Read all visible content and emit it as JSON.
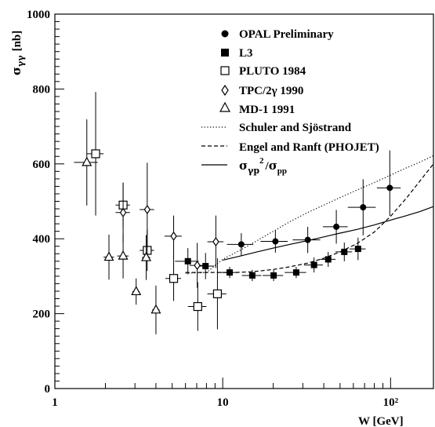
{
  "chart_data": {
    "type": "scatter",
    "title": "",
    "xlabel": "W [GeV]",
    "ylabel": "σγγ [nb]",
    "xscale": "log",
    "xlim": [
      1,
      180
    ],
    "ylim": [
      0,
      1000
    ],
    "grid": false,
    "legend_position": "top-right",
    "x_ticks": [
      {
        "value": 1,
        "label": "1"
      },
      {
        "value": 10,
        "label": "10"
      },
      {
        "value": 100,
        "label": "10²"
      }
    ],
    "y_ticks": [
      {
        "value": 0,
        "label": "0"
      },
      {
        "value": 200,
        "label": "200"
      },
      {
        "value": 400,
        "label": "400"
      },
      {
        "value": 600,
        "label": "600"
      },
      {
        "value": 800,
        "label": "800"
      },
      {
        "value": 1000,
        "label": "1000"
      }
    ],
    "series": [
      {
        "name": "OPAL Preliminary",
        "marker": "filled-circle",
        "points": [
          {
            "x": 12.9,
            "y": 385,
            "xerr": [
              2.3,
              2.3
            ],
            "yerr": [
              30,
              30
            ]
          },
          {
            "x": 20.6,
            "y": 393,
            "xerr": [
              3.8,
              3.8
            ],
            "yerr": [
              30,
              30
            ]
          },
          {
            "x": 32.1,
            "y": 397,
            "xerr": [
              6.0,
              6.0
            ],
            "yerr": [
              35,
              35
            ]
          },
          {
            "x": 47.5,
            "y": 432,
            "xerr": [
              8.0,
              8.0
            ],
            "yerr": [
              45,
              45
            ]
          },
          {
            "x": 68.6,
            "y": 484,
            "xerr": [
              13.0,
              13.0
            ],
            "yerr": [
              75,
              75
            ]
          },
          {
            "x": 98.9,
            "y": 536,
            "xerr": [
              16.0,
              16.0
            ],
            "yerr": [
              75,
              100
            ]
          }
        ]
      },
      {
        "name": "L3",
        "marker": "filled-square",
        "points": [
          {
            "x": 6.2,
            "y": 340,
            "xerr": [
              1.0,
              1.0
            ],
            "yerr": [
              35,
              35
            ]
          },
          {
            "x": 7.9,
            "y": 327,
            "xerr": [
              1.0,
              1.0
            ],
            "yerr": [
              35,
              35
            ]
          },
          {
            "x": 11.0,
            "y": 310,
            "xerr": [
              1.3,
              1.3
            ],
            "yerr": [
              15,
              15
            ]
          },
          {
            "x": 15.0,
            "y": 302,
            "xerr": [
              2.0,
              2.0
            ],
            "yerr": [
              15,
              15
            ]
          },
          {
            "x": 20.1,
            "y": 302,
            "xerr": [
              2.8,
              2.8
            ],
            "yerr": [
              15,
              15
            ]
          },
          {
            "x": 27.4,
            "y": 310,
            "xerr": [
              4.0,
              4.0
            ],
            "yerr": [
              15,
              15
            ]
          },
          {
            "x": 35.0,
            "y": 330,
            "xerr": [
              4.5,
              4.5
            ],
            "yerr": [
              20,
              20
            ]
          },
          {
            "x": 42.5,
            "y": 345,
            "xerr": [
              4.5,
              4.5
            ],
            "yerr": [
              20,
              20
            ]
          },
          {
            "x": 53.0,
            "y": 365,
            "xerr": [
              6.0,
              6.0
            ],
            "yerr": [
              25,
              25
            ]
          },
          {
            "x": 64.0,
            "y": 373,
            "xerr": [
              7.0,
              7.0
            ],
            "yerr": [
              30,
              30
            ]
          }
        ]
      },
      {
        "name": "PLUTO 1984",
        "marker": "open-square",
        "points": [
          {
            "x": 1.75,
            "y": 627,
            "xerr": [
              0.2,
              0.2
            ],
            "yerr": [
              165,
              165
            ]
          },
          {
            "x": 2.55,
            "y": 490,
            "xerr": [
              0.25,
              0.25
            ],
            "yerr": [
              60,
              60
            ]
          },
          {
            "x": 3.55,
            "y": 369,
            "xerr": [
              0.35,
              0.35
            ],
            "yerr": [
              55,
              55
            ]
          },
          {
            "x": 5.1,
            "y": 294,
            "xerr": [
              0.55,
              0.55
            ],
            "yerr": [
              60,
              60
            ]
          },
          {
            "x": 7.1,
            "y": 219,
            "xerr": [
              0.9,
              0.9
            ],
            "yerr": [
              65,
              65
            ]
          },
          {
            "x": 9.3,
            "y": 253,
            "xerr": [
              1.2,
              1.2
            ],
            "yerr": [
              95,
              95
            ]
          }
        ]
      },
      {
        "name": "TPC/2γ 1990",
        "marker": "open-diamond",
        "points": [
          {
            "x": 2.55,
            "y": 470,
            "xerr": [
              0.25,
              0.25
            ],
            "yerr": [
              80,
              80
            ]
          },
          {
            "x": 3.55,
            "y": 478,
            "xerr": [
              0.35,
              0.35
            ],
            "yerr": [
              125,
              125
            ]
          },
          {
            "x": 5.1,
            "y": 407,
            "xerr": [
              0.6,
              0.6
            ],
            "yerr": [
              55,
              55
            ]
          },
          {
            "x": 7.05,
            "y": 329,
            "xerr": [
              0.7,
              0.7
            ],
            "yerr": [
              60,
              60
            ]
          },
          {
            "x": 9.1,
            "y": 392,
            "xerr": [
              1.0,
              1.0
            ],
            "yerr": [
              70,
              70
            ]
          }
        ]
      },
      {
        "name": "MD-1 1991",
        "marker": "open-triangle",
        "points": [
          {
            "x": 1.55,
            "y": 604,
            "xerr": [
              0.25,
              0.25
            ],
            "yerr": [
              115,
              115
            ]
          },
          {
            "x": 2.1,
            "y": 351,
            "xerr": [
              0.15,
              0.15
            ],
            "yerr": [
              60,
              60
            ]
          },
          {
            "x": 2.55,
            "y": 354,
            "xerr": [
              0.2,
              0.2
            ],
            "yerr": [
              60,
              60
            ]
          },
          {
            "x": 3.05,
            "y": 259,
            "xerr": [
              0.15,
              0.15
            ],
            "yerr": [
              35,
              35
            ]
          },
          {
            "x": 3.5,
            "y": 350,
            "xerr": [
              0.2,
              0.2
            ],
            "yerr": [
              60,
              60
            ]
          },
          {
            "x": 4.0,
            "y": 210,
            "xerr": [
              0.2,
              0.2
            ],
            "yerr": [
              65,
              65
            ]
          }
        ]
      }
    ],
    "curves": [
      {
        "name": "Schuler and Sjöstrand",
        "style": "dotted",
        "x": [
          6,
          8,
          10,
          13,
          16,
          20,
          25,
          32,
          40,
          50,
          63,
          80,
          100,
          125,
          150,
          180
        ],
        "y": [
          308,
          310,
          345,
          372,
          395,
          420,
          445,
          470,
          490,
          510,
          530,
          550,
          570,
          590,
          605,
          622
        ]
      },
      {
        "name": "Engel and Ranft (PHOJET)",
        "style": "dashed",
        "x": [
          6,
          8,
          10,
          12,
          15,
          20,
          25,
          32,
          40,
          50,
          63,
          80,
          100,
          125,
          150,
          180
        ],
        "y": [
          310,
          310,
          310,
          310,
          312,
          318,
          325,
          335,
          348,
          365,
          387,
          418,
          460,
          510,
          555,
          600
        ]
      },
      {
        "name": "σγp²/σpp",
        "style": "solid",
        "x": [
          10,
          13,
          16,
          20,
          25,
          32,
          40,
          50,
          63,
          80,
          100,
          125,
          150,
          180
        ],
        "y": [
          343,
          355,
          365,
          375,
          385,
          395,
          405,
          415,
          425,
          437,
          450,
          462,
          473,
          486
        ]
      }
    ]
  }
}
